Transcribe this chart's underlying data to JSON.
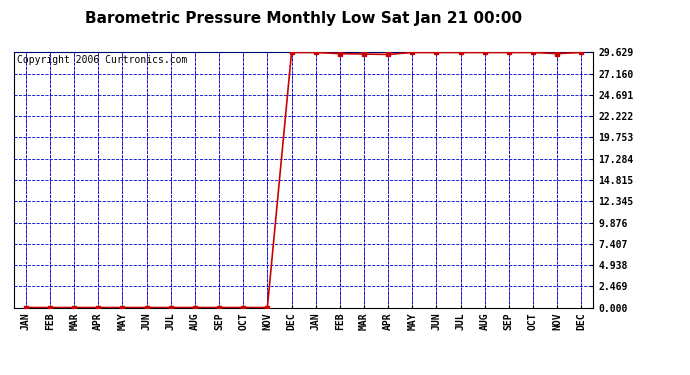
{
  "title": "Barometric Pressure Monthly Low Sat Jan 21 00:00",
  "copyright": "Copyright 2006 Curtronics.com",
  "x_labels": [
    "JAN",
    "FEB",
    "MAR",
    "APR",
    "MAY",
    "JUN",
    "JUL",
    "AUG",
    "SEP",
    "OCT",
    "NOV",
    "DEC",
    "JAN",
    "FEB",
    "MAR",
    "APR",
    "MAY",
    "JUN",
    "JUL",
    "AUG",
    "SEP",
    "OCT",
    "NOV",
    "DEC"
  ],
  "y_ticks": [
    0.0,
    2.469,
    4.938,
    7.407,
    9.876,
    12.345,
    14.815,
    17.284,
    19.753,
    22.222,
    24.691,
    27.16,
    29.629
  ],
  "ylim": [
    0,
    29.629
  ],
  "line_color": "#cc0000",
  "grid_color": "#0000cc",
  "bg_color": "#ffffff",
  "plot_bg_color": "#ffffff",
  "marker": "s",
  "marker_size": 2.5,
  "line_width": 1.2,
  "data_x": [
    0,
    1,
    2,
    3,
    4,
    5,
    6,
    7,
    8,
    9,
    10,
    11,
    12,
    13,
    14,
    15,
    16,
    17,
    18,
    19,
    20,
    21,
    22,
    23
  ],
  "data_y": [
    0.0,
    0.0,
    0.0,
    0.0,
    0.0,
    0.0,
    0.0,
    0.0,
    0.0,
    0.0,
    0.0,
    29.629,
    29.629,
    29.5,
    29.45,
    29.4,
    29.629,
    29.629,
    29.629,
    29.629,
    29.629,
    29.629,
    29.5,
    29.629
  ],
  "title_fontsize": 11,
  "tick_label_fontsize": 7,
  "copyright_fontsize": 7
}
